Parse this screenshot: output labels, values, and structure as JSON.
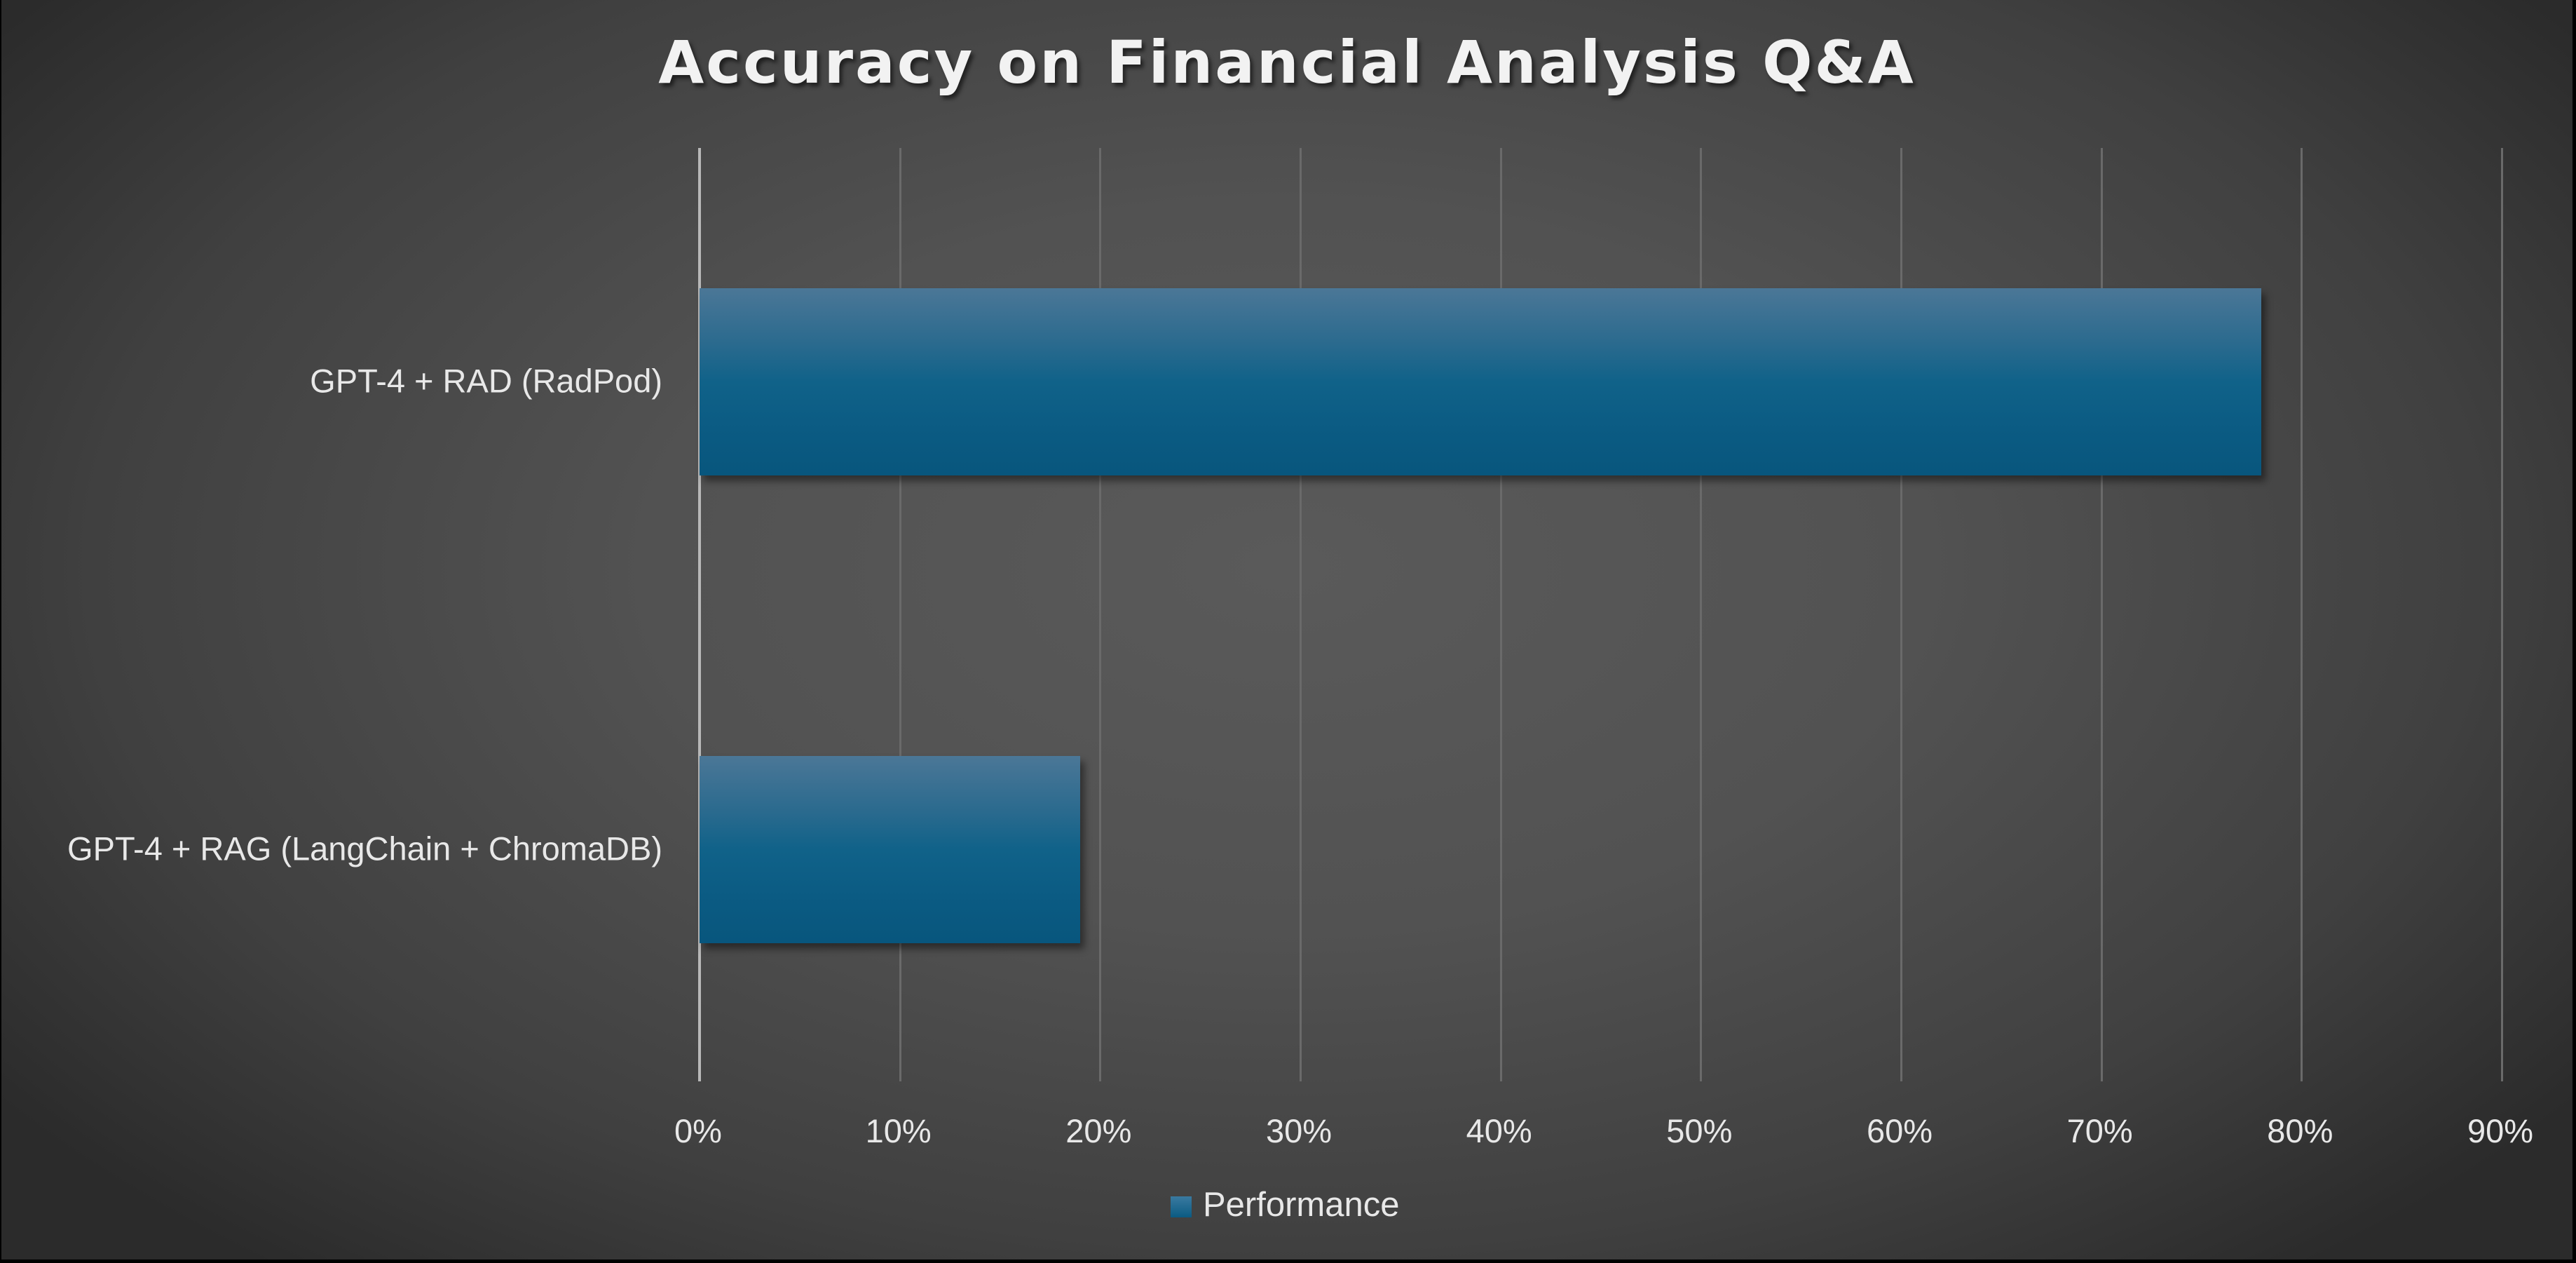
{
  "chart_data": {
    "type": "bar",
    "orientation": "horizontal",
    "title": "Accuracy on Financial Analysis Q&A",
    "categories": [
      "GPT-4 + RAD (RadPod)",
      "GPT-4 + RAG (LangChain + ChromaDB)"
    ],
    "series": [
      {
        "name": "Performance",
        "values": [
          78,
          19
        ],
        "color": "#0b5b83"
      }
    ],
    "xlabel": "",
    "ylabel": "",
    "xlim": [
      0,
      90
    ],
    "value_format": "percent",
    "x_ticks": [
      "0%",
      "10%",
      "20%",
      "30%",
      "40%",
      "50%",
      "60%",
      "70%",
      "80%",
      "90%"
    ],
    "grid": {
      "vertical": true,
      "horizontal": false
    },
    "legend": {
      "position": "bottom",
      "entries": [
        "Performance"
      ]
    }
  },
  "colors": {
    "bar": "#0b5b83",
    "bar_top": "#4b7797",
    "background_center": "#5a5a5a",
    "background_edge": "#2b2b2b",
    "text": "#e8e8e8",
    "gridline": "#6a6a6a"
  }
}
